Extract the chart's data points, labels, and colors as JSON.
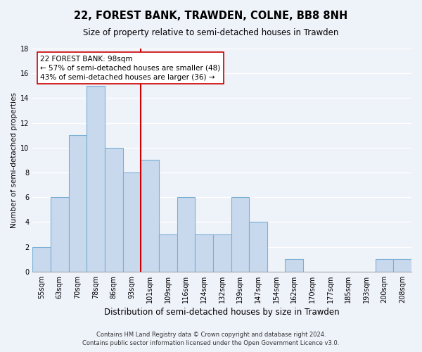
{
  "title": "22, FOREST BANK, TRAWDEN, COLNE, BB8 8NH",
  "subtitle": "Size of property relative to semi-detached houses in Trawden",
  "xlabel": "Distribution of semi-detached houses by size in Trawden",
  "ylabel": "Number of semi-detached properties",
  "bar_labels": [
    "55sqm",
    "63sqm",
    "70sqm",
    "78sqm",
    "86sqm",
    "93sqm",
    "101sqm",
    "109sqm",
    "116sqm",
    "124sqm",
    "132sqm",
    "139sqm",
    "147sqm",
    "154sqm",
    "162sqm",
    "170sqm",
    "177sqm",
    "185sqm",
    "193sqm",
    "200sqm",
    "208sqm"
  ],
  "bar_values": [
    2,
    6,
    11,
    15,
    10,
    8,
    9,
    3,
    6,
    3,
    3,
    6,
    4,
    0,
    1,
    0,
    0,
    0,
    0,
    1,
    1
  ],
  "bar_color": "#c8d9ee",
  "bar_edge_color": "#7aafd4",
  "vline_position": 5.5,
  "vline_color": "#cc0000",
  "annotation_title": "22 FOREST BANK: 98sqm",
  "annotation_line1": "← 57% of semi-detached houses are smaller (48)",
  "annotation_line2": "43% of semi-detached houses are larger (36) →",
  "annotation_box_color": "#ffffff",
  "annotation_box_edge": "#cc0000",
  "ylim": [
    0,
    18
  ],
  "yticks": [
    0,
    2,
    4,
    6,
    8,
    10,
    12,
    14,
    16,
    18
  ],
  "footer1": "Contains HM Land Registry data © Crown copyright and database right 2024.",
  "footer2": "Contains public sector information licensed under the Open Government Licence v3.0.",
  "bg_color": "#eef2f9",
  "grid_color": "#ffffff",
  "title_fontsize": 10.5,
  "subtitle_fontsize": 8.5,
  "xlabel_fontsize": 8.5,
  "ylabel_fontsize": 7.5,
  "tick_fontsize": 7.0,
  "annotation_fontsize": 7.5,
  "footer_fontsize": 6.0
}
